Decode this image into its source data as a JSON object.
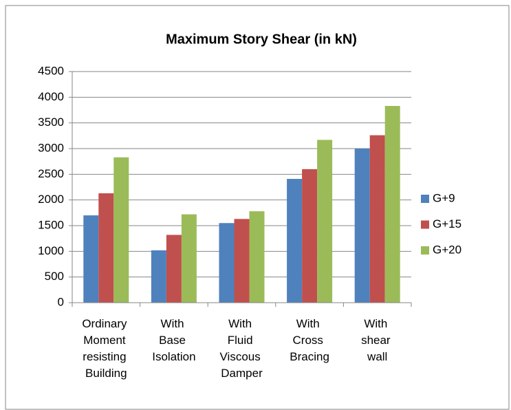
{
  "chart_data": {
    "type": "bar",
    "title": "Maximum Story Shear (in kN)",
    "categories": [
      "Ordinary Moment resisting Building",
      "With Base Isolation",
      "With Fluid Viscous Damper",
      "With Cross Bracing",
      "With shear wall"
    ],
    "series": [
      {
        "name": "G+9",
        "color": "#4f81bd",
        "values": [
          1700,
          1020,
          1550,
          2410,
          3000
        ]
      },
      {
        "name": "G+15",
        "color": "#c0504d",
        "values": [
          2130,
          1320,
          1630,
          2600,
          3260
        ]
      },
      {
        "name": "G+20",
        "color": "#9bbb59",
        "values": [
          2830,
          1720,
          1780,
          3170,
          3830
        ]
      }
    ],
    "ylim": [
      0,
      4500
    ],
    "yticks": [
      0,
      500,
      1000,
      1500,
      2000,
      2500,
      3000,
      3500,
      4000,
      4500
    ],
    "grid": true,
    "legend": "right"
  }
}
